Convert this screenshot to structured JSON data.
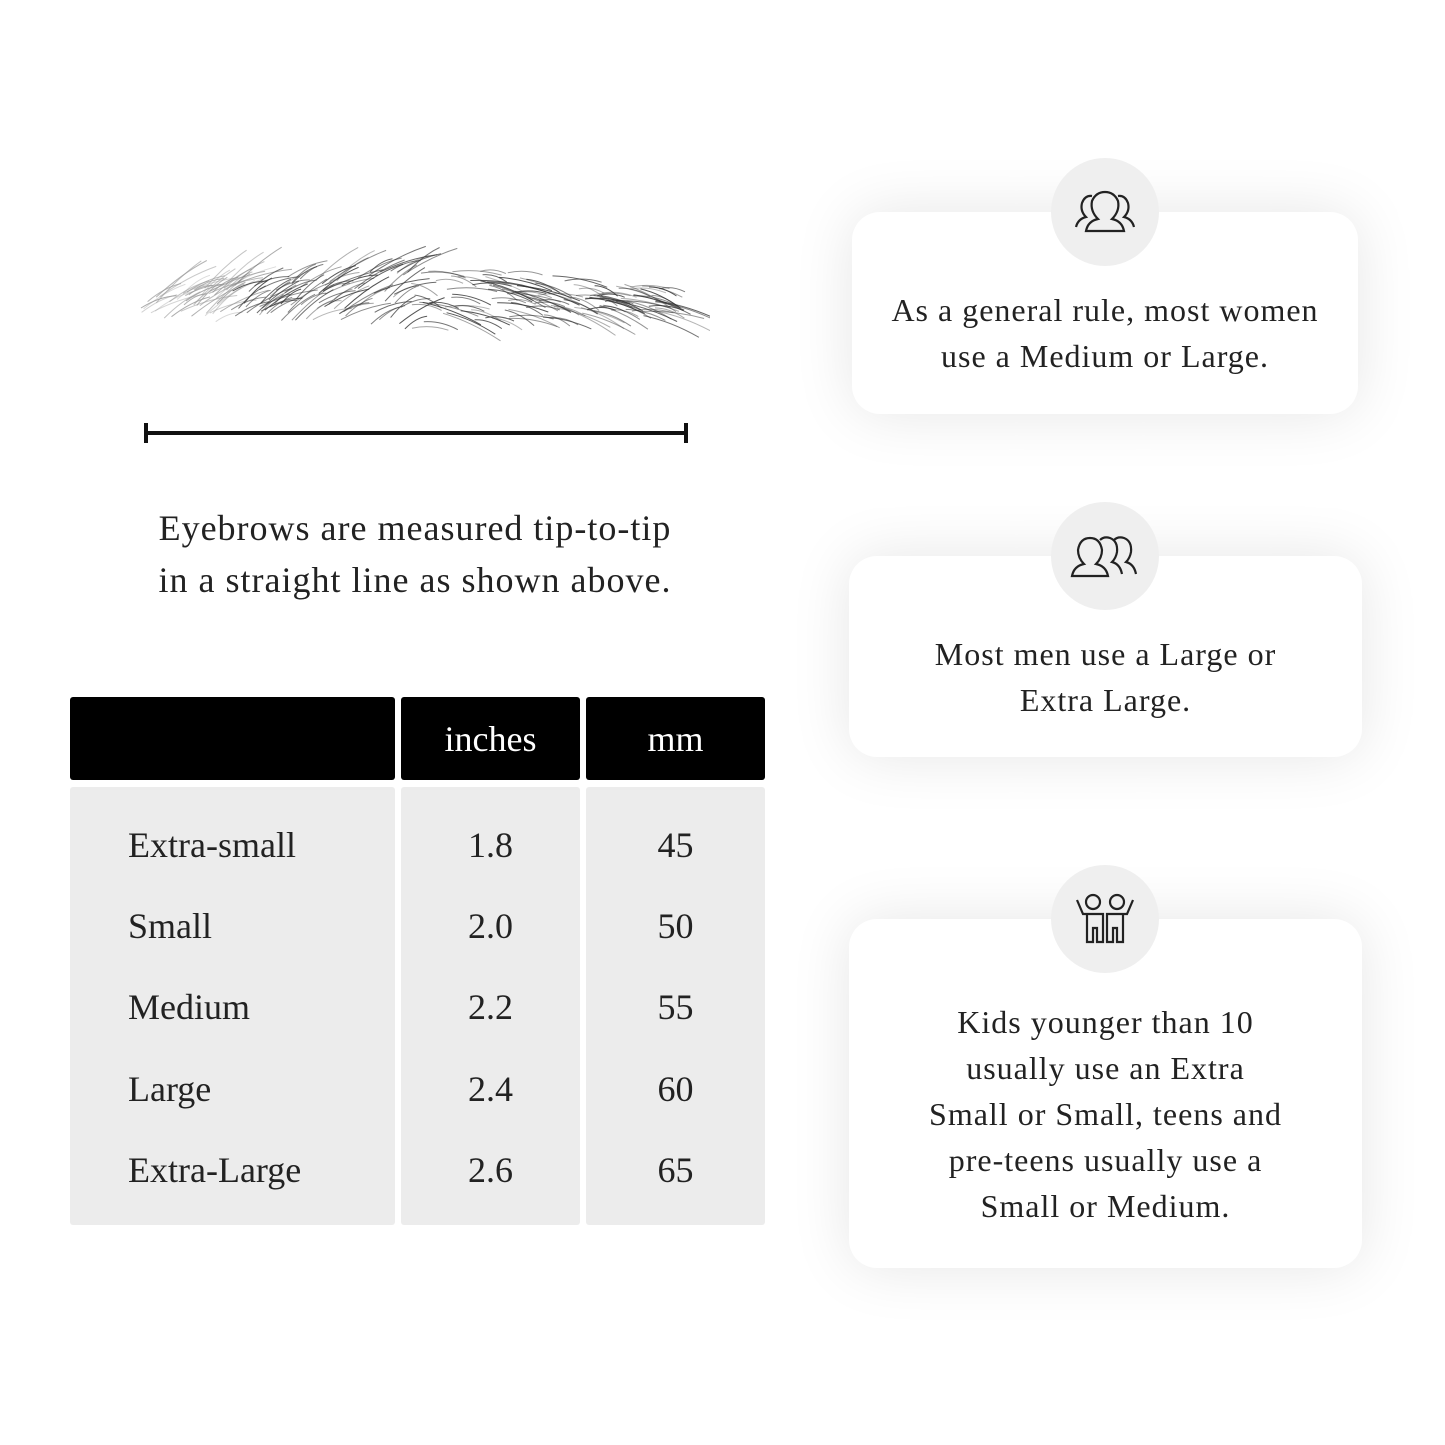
{
  "illustration": {
    "eyebrow_icon": "eyebrow-sketch",
    "measure_line": "tip-to-tip-measure"
  },
  "caption": {
    "line1": "Eyebrows are measured tip-to-tip",
    "line2": "in a straight line as shown above."
  },
  "table": {
    "headers": [
      "",
      "inches",
      "mm"
    ],
    "rows": [
      {
        "size": "Extra-small",
        "inches": "1.8",
        "mm": "45"
      },
      {
        "size": "Small",
        "inches": "2.0",
        "mm": "50"
      },
      {
        "size": "Medium",
        "inches": "2.2",
        "mm": "55"
      },
      {
        "size": "Large",
        "inches": "2.4",
        "mm": "60"
      },
      {
        "size": "Extra-Large",
        "inches": "2.6",
        "mm": "65"
      }
    ]
  },
  "cards": [
    {
      "icon": "women-group-icon",
      "lines": [
        "As a general rule, most women",
        "use a Medium or Large."
      ]
    },
    {
      "icon": "men-group-icon",
      "lines": [
        "Most men use a Large or",
        "Extra Large."
      ]
    },
    {
      "icon": "kids-icon",
      "lines": [
        "Kids younger than 10",
        "usually use an Extra",
        "Small or Small, teens and",
        "pre-teens usually use a",
        "Small or Medium."
      ]
    }
  ],
  "colors": {
    "header_bg": "#000000",
    "cell_bg": "#ececec",
    "circle_bg": "#efefef"
  }
}
